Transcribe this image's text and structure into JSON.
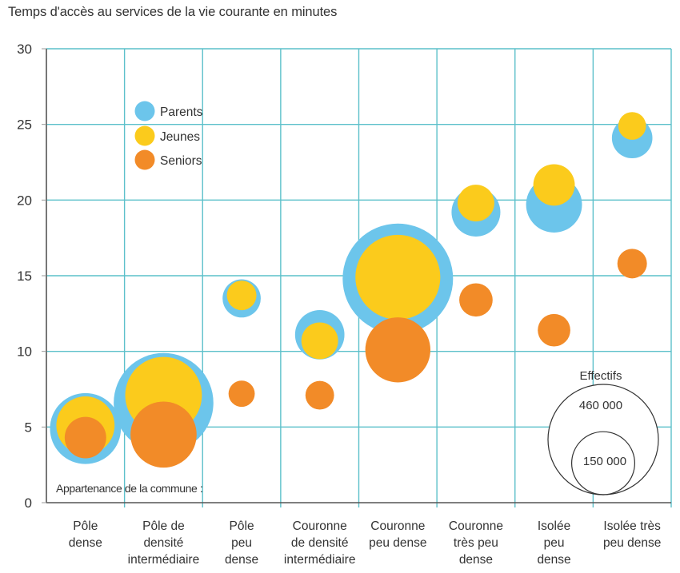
{
  "chart_data": {
    "type": "bubble",
    "title": "Temps d'accès au services de la vie courante en minutes",
    "xlabel": "Appartenance de la commune :",
    "ylabel": "",
    "ylim": [
      0,
      30
    ],
    "yticks": [
      0,
      5,
      10,
      15,
      20,
      25,
      30
    ],
    "grid": true,
    "categories": [
      [
        "Pôle",
        "dense"
      ],
      [
        "Pôle de",
        "densité",
        "intermédiaire"
      ],
      [
        "Pôle",
        "peu",
        "dense"
      ],
      [
        "Couronne",
        "de densité",
        "intermédiaire"
      ],
      [
        "Couronne",
        "peu dense"
      ],
      [
        "Couronne",
        "très peu",
        "dense"
      ],
      [
        "Isolée",
        "peu",
        "dense"
      ],
      [
        "Isolée très",
        "peu dense"
      ]
    ],
    "series": [
      {
        "name": "Parents",
        "color": "#6CC5EB",
        "values": [
          4.9,
          6.6,
          13.5,
          11.1,
          14.8,
          19.2,
          19.7,
          24.1
        ],
        "effectifs": [
          190000,
          375000,
          55000,
          92000,
          460000,
          90000,
          118000,
          62000
        ]
      },
      {
        "name": "Jeunes",
        "color": "#FBCB1C",
        "values": [
          5.1,
          7.1,
          13.7,
          10.7,
          14.9,
          19.8,
          21.0,
          24.9
        ],
        "effectifs": [
          128000,
          222000,
          33000,
          51000,
          272000,
          51000,
          65000,
          29000
        ]
      },
      {
        "name": "Seniors",
        "color": "#F28B28",
        "values": [
          4.3,
          4.5,
          7.2,
          7.1,
          10.1,
          13.4,
          11.4,
          15.8
        ],
        "effectifs": [
          65000,
          165000,
          26000,
          31000,
          160000,
          42000,
          40000,
          33000
        ]
      }
    ],
    "legend": {
      "position": "top-left",
      "entries": [
        "Parents",
        "Jeunes",
        "Seniors"
      ]
    },
    "size_legend": {
      "title": "Effectifs",
      "position": "bottom-right",
      "entries": [
        {
          "label": "460 000",
          "value": 460000
        },
        {
          "label": "150 000",
          "value": 150000
        }
      ]
    }
  }
}
